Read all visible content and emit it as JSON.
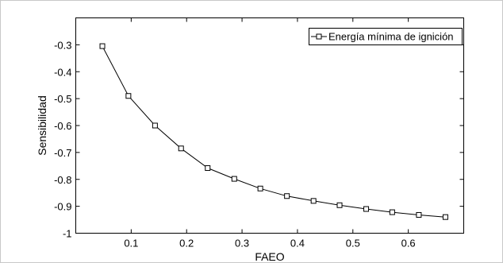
{
  "chart_data": {
    "type": "line",
    "title": "",
    "xlabel": "FAEO",
    "ylabel": "Sensibilidad",
    "xlim": [
      0.0,
      0.7
    ],
    "ylim": [
      -1.0,
      -0.2
    ],
    "xticks": [
      0.1,
      0.2,
      0.3,
      0.4,
      0.5,
      0.6
    ],
    "xtick_labels": [
      "0.1",
      "0.2",
      "0.3",
      "0.4",
      "0.5",
      "0.6"
    ],
    "yticks": [
      -0.3,
      -0.4,
      -0.5,
      -0.6,
      -0.7,
      -0.8,
      -0.9,
      -1.0
    ],
    "ytick_labels": [
      "-0.3",
      "-0.4",
      "-0.5",
      "-0.6",
      "-0.7",
      "-0.8",
      "-0.9",
      "-1"
    ],
    "grid": false,
    "legend_position": "top-right",
    "series": [
      {
        "name": "Energía mínima de ignición",
        "color": "#000000",
        "marker": "square",
        "x": [
          0.048,
          0.095,
          0.143,
          0.19,
          0.238,
          0.286,
          0.333,
          0.381,
          0.429,
          0.476,
          0.524,
          0.571,
          0.619,
          0.667
        ],
        "y": [
          -0.305,
          -0.49,
          -0.6,
          -0.685,
          -0.758,
          -0.798,
          -0.834,
          -0.862,
          -0.88,
          -0.896,
          -0.91,
          -0.922,
          -0.932,
          -0.94
        ]
      }
    ]
  }
}
